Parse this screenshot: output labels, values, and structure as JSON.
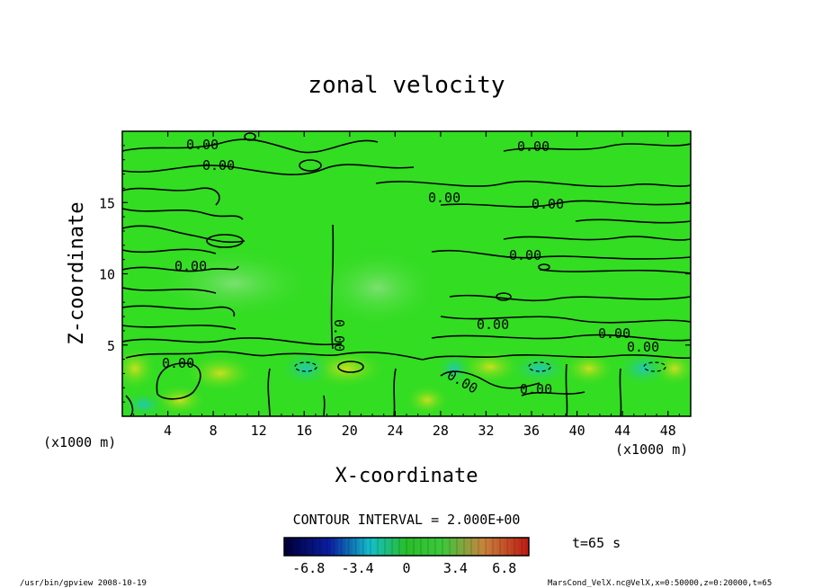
{
  "chart_data": {
    "type": "heatmap",
    "title": "zonal velocity",
    "xlabel": "X-coordinate",
    "ylabel": "Z-coordinate",
    "x_unit": "(x1000 m)",
    "y_unit": "(x1000 m)",
    "xlim": [
      0,
      50
    ],
    "ylim": [
      0,
      20
    ],
    "x_ticks": [
      4,
      8,
      12,
      16,
      20,
      24,
      28,
      32,
      36,
      40,
      44,
      48
    ],
    "y_ticks": [
      5,
      10,
      15
    ],
    "contour_interval_label": "CONTOUR INTERVAL = 2.000E+00",
    "contour_labels": [
      "0.00",
      "0.00",
      "0.00",
      "0.00",
      "0.00",
      "0.00",
      "0.00",
      "0.00",
      "0.00",
      "0.00",
      "0.00",
      "0.00",
      "0.00",
      "0.00"
    ],
    "colorbar": {
      "ticks": [
        "-6.8",
        "-3.4",
        "0",
        "3.4",
        "6.8"
      ],
      "range": [
        -8.5,
        8.5
      ],
      "low_color": "#000066",
      "mid_color": "#33cc33",
      "high_color": "#cc2200"
    },
    "field_colors": {
      "background": "#33dd22",
      "positive": "#aadd22",
      "negative": "#22ccaa"
    },
    "time_label": "t=65 s",
    "footer_left": "/usr/bin/gpview   2008-10-19",
    "footer_right": "MarsCond_VelX.nc@VelX,x=0:50000,z=0:20000,t=65"
  }
}
